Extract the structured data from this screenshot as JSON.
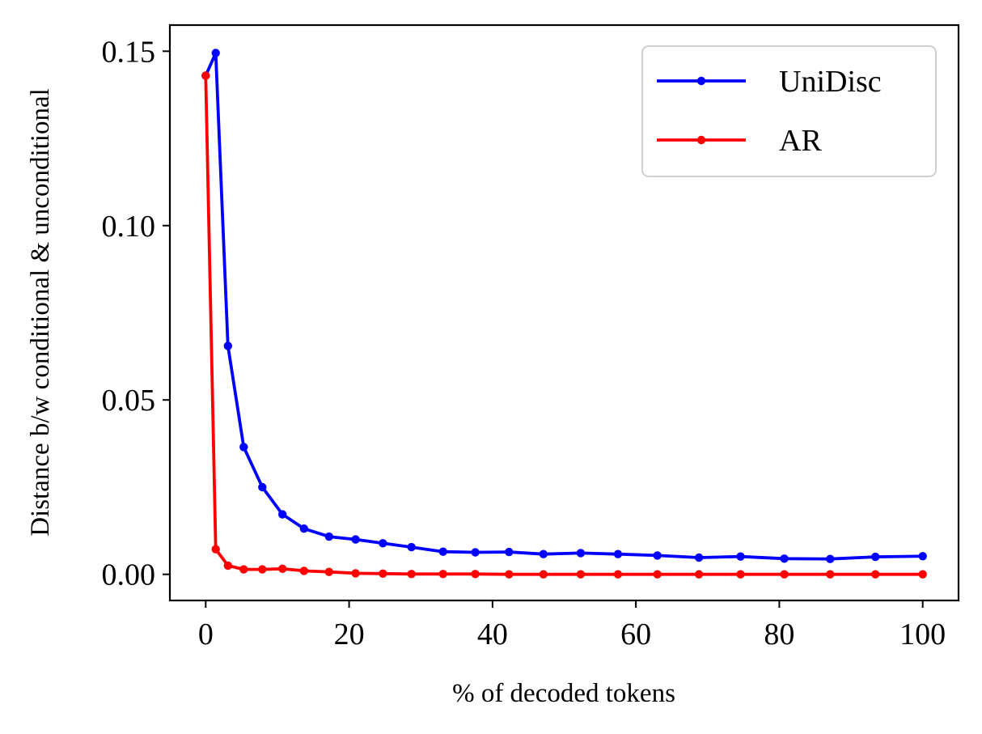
{
  "colors": {
    "unidisc": "#0000ff",
    "ar": "#ff0000",
    "axes": "#000000",
    "legend_border": "#d0d0d0",
    "background": "#ffffff"
  },
  "chart_data": {
    "type": "line",
    "title": "",
    "xlabel": "% of decoded tokens",
    "ylabel": "Distance b/w conditional & unconditional",
    "xlim": [
      -5,
      105
    ],
    "ylim": [
      -0.0075,
      0.1575
    ],
    "xticks": [
      0,
      20,
      40,
      60,
      80,
      100
    ],
    "xtick_labels": [
      "0",
      "20",
      "40",
      "60",
      "80",
      "100"
    ],
    "yticks": [
      0.0,
      0.05,
      0.1,
      0.15
    ],
    "ytick_labels": [
      "0.00",
      "0.05",
      "0.10",
      "0.15"
    ],
    "grid": false,
    "legend_position": "top-right",
    "marker": "circle",
    "series": [
      {
        "name": "UniDisc",
        "color": "#0000ff",
        "x": [
          0,
          1.4,
          3.1,
          5.3,
          7.9,
          10.7,
          13.7,
          17.2,
          20.9,
          24.7,
          28.7,
          33.1,
          37.6,
          42.3,
          47.1,
          52.3,
          57.5,
          63.0,
          68.8,
          74.6,
          80.7,
          87.1,
          93.4,
          100
        ],
        "y": [
          0.143,
          0.1495,
          0.0655,
          0.0365,
          0.025,
          0.0172,
          0.0131,
          0.0108,
          0.01,
          0.0089,
          0.0078,
          0.0065,
          0.0063,
          0.0064,
          0.0058,
          0.0061,
          0.0058,
          0.0054,
          0.0048,
          0.0051,
          0.0045,
          0.0044,
          0.005,
          0.0052
        ]
      },
      {
        "name": "AR",
        "color": "#ff0000",
        "x": [
          0,
          1.4,
          3.1,
          5.3,
          7.9,
          10.7,
          13.7,
          17.2,
          20.9,
          24.7,
          28.7,
          33.1,
          37.6,
          42.3,
          47.1,
          52.3,
          57.5,
          63.0,
          68.8,
          74.6,
          80.7,
          87.1,
          93.4,
          100
        ],
        "y": [
          0.143,
          0.0072,
          0.0025,
          0.0014,
          0.0014,
          0.0016,
          0.001,
          0.0007,
          0.0003,
          0.0002,
          0.0001,
          0.0001,
          0.0001,
          0.0,
          0.0,
          0.0,
          0.0,
          0.0,
          0.0,
          0.0,
          0.0,
          0.0,
          0.0,
          0.0
        ]
      }
    ]
  }
}
